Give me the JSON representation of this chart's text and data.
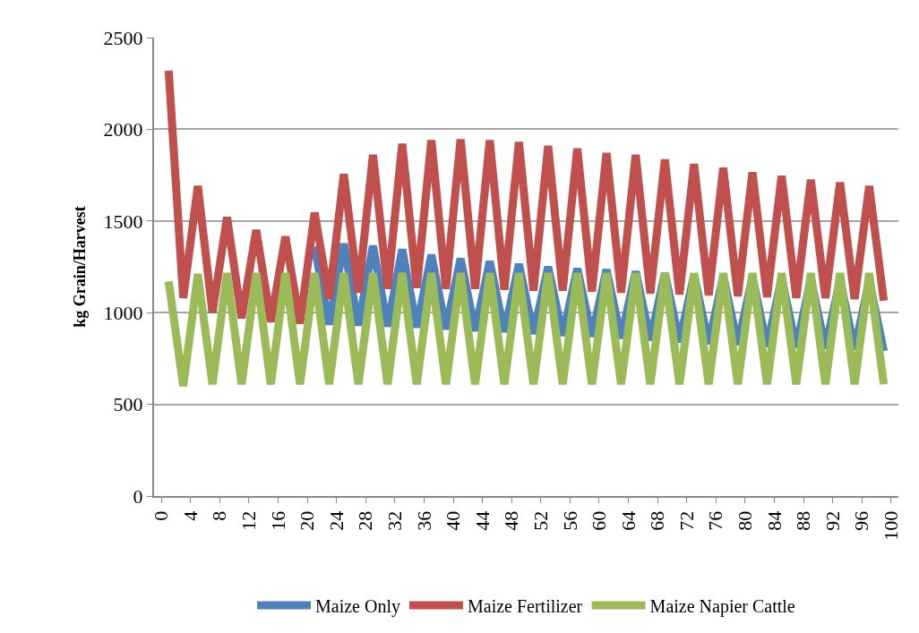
{
  "chart_data": {
    "type": "line",
    "ylabel": "kg Grain/Harvest",
    "x": [
      1,
      3,
      5,
      7,
      9,
      11,
      13,
      15,
      17,
      19,
      21,
      23,
      25,
      27,
      29,
      31,
      33,
      35,
      37,
      39,
      41,
      43,
      45,
      47,
      49,
      51,
      53,
      55,
      57,
      59,
      61,
      63,
      65,
      67,
      69,
      71,
      73,
      75,
      77,
      79,
      81,
      83,
      85,
      87,
      89,
      91,
      93,
      95,
      97,
      99
    ],
    "series": [
      {
        "name": "Maize Only",
        "color": "#4f81bd",
        "values": [
          null,
          null,
          null,
          null,
          null,
          null,
          null,
          null,
          null,
          null,
          1360,
          935,
          1375,
          930,
          1365,
          925,
          1345,
          920,
          1315,
          910,
          1295,
          900,
          1280,
          895,
          1265,
          885,
          1250,
          875,
          1240,
          870,
          1235,
          860,
          1225,
          850,
          1215,
          840,
          1205,
          830,
          1200,
          825,
          1195,
          815,
          1190,
          810,
          1185,
          805,
          1180,
          800,
          1175,
          790
        ]
      },
      {
        "name": "Maize Fertilizer",
        "color": "#c0504d",
        "values": [
          2320,
          1080,
          1690,
          1000,
          1520,
          970,
          1450,
          950,
          1415,
          940,
          1545,
          1075,
          1755,
          1110,
          1860,
          1130,
          1920,
          1135,
          1940,
          1130,
          1945,
          1130,
          1940,
          1125,
          1930,
          1120,
          1910,
          1120,
          1895,
          1115,
          1870,
          1110,
          1860,
          1105,
          1835,
          1100,
          1810,
          1095,
          1790,
          1090,
          1765,
          1085,
          1745,
          1080,
          1725,
          1080,
          1710,
          1075,
          1690,
          1065
        ]
      },
      {
        "name": "Maize Napier Cattle",
        "color": "#9bbb59",
        "values": [
          1170,
          600,
          1210,
          610,
          1215,
          610,
          1215,
          610,
          1215,
          610,
          1215,
          610,
          1215,
          610,
          1215,
          610,
          1215,
          610,
          1215,
          610,
          1215,
          610,
          1215,
          610,
          1215,
          610,
          1215,
          610,
          1215,
          610,
          1215,
          610,
          1215,
          610,
          1215,
          610,
          1215,
          610,
          1215,
          610,
          1215,
          610,
          1215,
          610,
          1215,
          610,
          1215,
          610,
          1215,
          610
        ]
      }
    ],
    "xlim": [
      -1,
      101
    ],
    "xticks": [
      0,
      4,
      8,
      12,
      16,
      20,
      24,
      28,
      32,
      36,
      40,
      44,
      48,
      52,
      56,
      60,
      64,
      68,
      72,
      76,
      80,
      84,
      88,
      92,
      96,
      100
    ],
    "ylim": [
      0,
      2500
    ],
    "yticks": [
      0,
      500,
      1000,
      1500,
      2000,
      2500
    ],
    "grid": "y",
    "legend": "bottom",
    "marker": "none",
    "line_style": "solid"
  }
}
